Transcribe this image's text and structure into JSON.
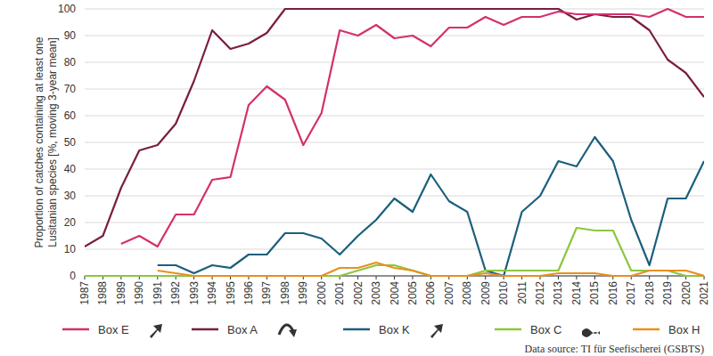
{
  "chart_data": {
    "type": "line",
    "y_label": [
      "Proportion of catches containing at least one",
      "Lusitanian species [%, moving 3-year mean]"
    ],
    "source": "Data source: TI für Seefischerei (GSBTS)",
    "x": [
      1987,
      1988,
      1989,
      1990,
      1991,
      1992,
      1993,
      1994,
      1995,
      1996,
      1997,
      1998,
      1999,
      2000,
      2001,
      2002,
      2003,
      2004,
      2005,
      2006,
      2007,
      2008,
      2009,
      2010,
      2011,
      2012,
      2013,
      2014,
      2015,
      2016,
      2017,
      2018,
      2019,
      2020,
      2021
    ],
    "xlim": [
      1987,
      2021
    ],
    "xticks": [
      1987,
      1988,
      1989,
      1990,
      1991,
      1992,
      1993,
      1994,
      1995,
      1996,
      1997,
      1998,
      1999,
      2000,
      2001,
      2002,
      2003,
      2004,
      2005,
      2006,
      2007,
      2008,
      2009,
      2010,
      2011,
      2012,
      2013,
      2014,
      2015,
      2016,
      2017,
      2018,
      2019,
      2020,
      2021
    ],
    "ylim": [
      0,
      100
    ],
    "yticks": [
      0,
      10,
      20,
      30,
      40,
      50,
      60,
      70,
      80,
      90,
      100
    ],
    "grid": true,
    "legend": "bottom",
    "series": [
      {
        "name": "Box E",
        "color": "#d4306e",
        "values": [
          null,
          null,
          12,
          15,
          11,
          23,
          23,
          36,
          37,
          64,
          71,
          66,
          49,
          61,
          92,
          90,
          94,
          89,
          90,
          86,
          93,
          93,
          97,
          94,
          97,
          97,
          99,
          98,
          98,
          98,
          98,
          97,
          100,
          97,
          97
        ]
      },
      {
        "name": "Box A",
        "color": "#7a1d42",
        "values": [
          11,
          15,
          33,
          47,
          49,
          57,
          73,
          92,
          85,
          87,
          91,
          100,
          100,
          100,
          100,
          100,
          100,
          100,
          100,
          100,
          100,
          100,
          100,
          100,
          100,
          100,
          100,
          96,
          98,
          97,
          97,
          92,
          81,
          76,
          67
        ]
      },
      {
        "name": "Box K",
        "color": "#1b5f7c",
        "values": [
          null,
          null,
          null,
          null,
          4,
          4,
          1,
          4,
          3,
          8,
          8,
          16,
          16,
          14,
          8,
          15,
          21,
          29,
          24,
          38,
          28,
          24,
          2,
          0,
          24,
          30,
          43,
          41,
          52,
          43,
          21,
          4,
          29,
          29,
          43
        ]
      },
      {
        "name": "Box C",
        "color": "#8cc63f",
        "values": [
          0,
          0,
          0,
          0,
          0,
          0,
          0,
          0,
          0,
          0,
          0,
          0,
          0,
          0,
          0,
          2,
          4,
          4,
          2,
          0,
          0,
          0,
          2,
          2,
          2,
          2,
          2,
          18,
          17,
          17,
          2,
          2,
          2,
          0,
          0
        ]
      },
      {
        "name": "Box H",
        "color": "#e8901e",
        "values": [
          null,
          null,
          null,
          null,
          2,
          1,
          0,
          0,
          0,
          0,
          0,
          0,
          0,
          0,
          3,
          3,
          5,
          3,
          2,
          0,
          0,
          0,
          1,
          0,
          0,
          0,
          1,
          1,
          1,
          0,
          0,
          2,
          2,
          2,
          0
        ]
      }
    ]
  }
}
